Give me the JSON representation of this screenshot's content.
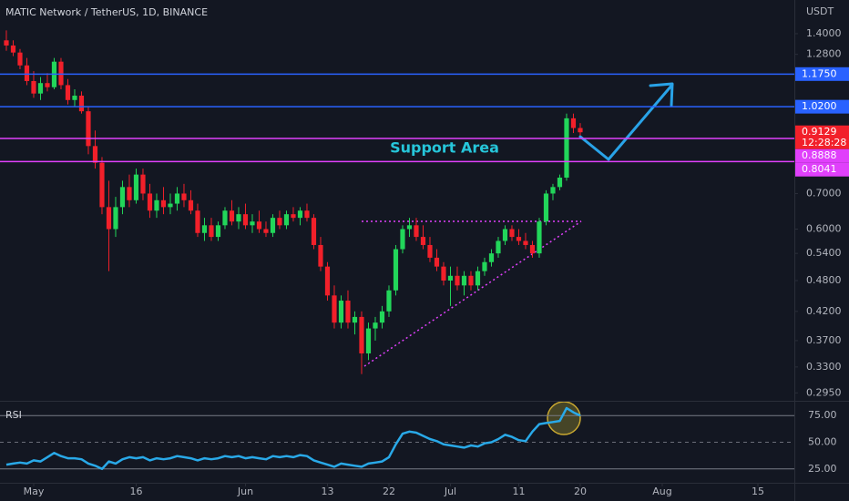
{
  "chart_data": [
    {
      "type": "candlestick",
      "title": "MATIC Network / TetherUS, 1D, BINANCE",
      "currency": "USDT",
      "log_scale": true,
      "up_color": "#22d65a",
      "down_color": "#f2202a",
      "x": [
        -4,
        -3,
        -2,
        -1,
        0,
        1,
        2,
        3,
        4,
        5,
        6,
        7,
        8,
        9,
        10,
        11,
        12,
        13,
        14,
        15,
        16,
        17,
        18,
        19,
        20,
        21,
        22,
        23,
        24,
        25,
        26,
        27,
        28,
        29,
        30,
        31,
        32,
        33,
        34,
        35,
        36,
        37,
        38,
        39,
        40,
        41,
        42,
        43,
        44,
        45,
        46,
        47,
        48,
        49,
        50,
        51,
        52,
        53,
        54,
        55,
        56,
        57,
        58,
        59,
        60,
        61,
        62,
        63,
        64,
        65,
        66,
        67,
        68,
        69,
        70,
        71,
        72,
        73,
        74,
        75,
        76,
        77,
        78,
        79,
        80
      ],
      "open": [
        1.36,
        1.33,
        1.29,
        1.22,
        1.14,
        1.08,
        1.13,
        1.11,
        1.24,
        1.12,
        1.05,
        1.07,
        1.0,
        0.86,
        0.8,
        0.66,
        0.6,
        0.66,
        0.72,
        0.68,
        0.76,
        0.7,
        0.65,
        0.68,
        0.66,
        0.67,
        0.7,
        0.68,
        0.65,
        0.59,
        0.61,
        0.58,
        0.61,
        0.65,
        0.62,
        0.64,
        0.61,
        0.62,
        0.6,
        0.59,
        0.63,
        0.61,
        0.64,
        0.63,
        0.65,
        0.63,
        0.56,
        0.51,
        0.45,
        0.4,
        0.44,
        0.4,
        0.41,
        0.35,
        0.39,
        0.4,
        0.42,
        0.46,
        0.55,
        0.6,
        0.61,
        0.58,
        0.56,
        0.53,
        0.51,
        0.48,
        0.49,
        0.47,
        0.49,
        0.47,
        0.5,
        0.52,
        0.54,
        0.57,
        0.6,
        0.58,
        0.57,
        0.56,
        0.54,
        0.62,
        0.7,
        0.72,
        0.75,
        0.97,
        0.93
      ],
      "high": [
        1.42,
        1.36,
        1.31,
        1.26,
        1.19,
        1.16,
        1.18,
        1.26,
        1.26,
        1.15,
        1.1,
        1.09,
        1.02,
        0.92,
        0.82,
        0.74,
        0.69,
        0.74,
        0.76,
        0.78,
        0.78,
        0.73,
        0.7,
        0.72,
        0.7,
        0.72,
        0.73,
        0.71,
        0.67,
        0.63,
        0.63,
        0.62,
        0.66,
        0.68,
        0.66,
        0.67,
        0.64,
        0.65,
        0.62,
        0.64,
        0.65,
        0.65,
        0.66,
        0.66,
        0.67,
        0.64,
        0.58,
        0.52,
        0.47,
        0.45,
        0.46,
        0.42,
        0.42,
        0.4,
        0.41,
        0.43,
        0.47,
        0.56,
        0.61,
        0.63,
        0.63,
        0.61,
        0.58,
        0.55,
        0.52,
        0.51,
        0.51,
        0.5,
        0.5,
        0.51,
        0.53,
        0.55,
        0.58,
        0.61,
        0.61,
        0.6,
        0.59,
        0.57,
        0.63,
        0.71,
        0.73,
        0.76,
        0.99,
        0.99,
        0.95
      ],
      "low": [
        1.3,
        1.27,
        1.2,
        1.12,
        1.06,
        1.05,
        1.09,
        1.1,
        1.1,
        1.03,
        1.02,
        0.99,
        0.83,
        0.78,
        0.64,
        0.5,
        0.58,
        0.64,
        0.66,
        0.67,
        0.68,
        0.63,
        0.63,
        0.64,
        0.64,
        0.65,
        0.66,
        0.64,
        0.58,
        0.57,
        0.57,
        0.57,
        0.6,
        0.61,
        0.6,
        0.6,
        0.59,
        0.59,
        0.58,
        0.58,
        0.6,
        0.6,
        0.62,
        0.61,
        0.62,
        0.55,
        0.5,
        0.44,
        0.39,
        0.39,
        0.39,
        0.38,
        0.32,
        0.34,
        0.37,
        0.39,
        0.41,
        0.45,
        0.54,
        0.58,
        0.57,
        0.55,
        0.52,
        0.5,
        0.47,
        0.43,
        0.46,
        0.45,
        0.46,
        0.46,
        0.49,
        0.51,
        0.53,
        0.56,
        0.57,
        0.56,
        0.55,
        0.53,
        0.53,
        0.61,
        0.68,
        0.71,
        0.74,
        0.91,
        0.9
      ],
      "close": [
        1.33,
        1.29,
        1.22,
        1.14,
        1.08,
        1.13,
        1.11,
        1.24,
        1.12,
        1.05,
        1.07,
        1.0,
        0.86,
        0.8,
        0.66,
        0.6,
        0.66,
        0.72,
        0.68,
        0.76,
        0.7,
        0.65,
        0.68,
        0.66,
        0.67,
        0.7,
        0.68,
        0.65,
        0.59,
        0.61,
        0.58,
        0.61,
        0.65,
        0.62,
        0.64,
        0.61,
        0.62,
        0.6,
        0.59,
        0.63,
        0.61,
        0.64,
        0.63,
        0.65,
        0.63,
        0.56,
        0.51,
        0.45,
        0.4,
        0.44,
        0.4,
        0.41,
        0.35,
        0.39,
        0.4,
        0.42,
        0.46,
        0.55,
        0.6,
        0.61,
        0.58,
        0.56,
        0.53,
        0.51,
        0.48,
        0.49,
        0.47,
        0.49,
        0.47,
        0.5,
        0.52,
        0.54,
        0.57,
        0.6,
        0.58,
        0.57,
        0.56,
        0.54,
        0.62,
        0.7,
        0.72,
        0.75,
        0.97,
        0.93,
        0.9129
      ],
      "countdown": "12:28:28",
      "last_price_color": "#f2202a",
      "ylim": [
        0.285,
        1.62
      ],
      "yticks": [
        {
          "value": 1.4,
          "label": "1.4000"
        },
        {
          "value": 1.28,
          "label": "1.2800"
        },
        {
          "value": 0.7,
          "label": "0.7000"
        },
        {
          "value": 0.6,
          "label": "0.6000"
        },
        {
          "value": 0.54,
          "label": "0.5400"
        },
        {
          "value": 0.48,
          "label": "0.4800"
        },
        {
          "value": 0.42,
          "label": "0.4200"
        },
        {
          "value": 0.37,
          "label": "0.3700"
        },
        {
          "value": 0.33,
          "label": "0.3300"
        },
        {
          "value": 0.295,
          "label": "0.2950"
        }
      ],
      "xlim": [
        -4.93,
        111.07
      ],
      "levels": [
        {
          "value": {
            "value": 1.175,
            "label": "1.1750"
          },
          "color": "#2962ff"
        },
        {
          "value": {
            "value": 1.02,
            "label": "1.0200"
          },
          "color": "#2962ff"
        },
        {
          "value": 0.8888,
          "color": "#e040fb"
        },
        {
          "value": 0.8041,
          "color": "#e040fb"
        }
      ],
      "annotation": "Support Area"
    },
    {
      "type": "line",
      "name": "RSI",
      "color": "#29a9e8",
      "x": [
        -4,
        -3,
        -2,
        -1,
        0,
        1,
        2,
        3,
        4,
        5,
        6,
        7,
        8,
        9,
        10,
        11,
        12,
        13,
        14,
        15,
        16,
        17,
        18,
        19,
        20,
        21,
        22,
        23,
        24,
        25,
        26,
        27,
        28,
        29,
        30,
        31,
        32,
        33,
        34,
        35,
        36,
        37,
        38,
        39,
        40,
        41,
        42,
        43,
        44,
        45,
        46,
        47,
        48,
        49,
        50,
        51,
        52,
        53,
        54,
        55,
        56,
        57,
        58,
        59,
        60,
        61,
        62,
        63,
        64,
        65,
        66,
        67,
        68,
        69,
        70,
        71,
        72,
        73,
        74,
        75,
        76,
        77,
        78,
        79,
        80
      ],
      "values": [
        29,
        30,
        31,
        30,
        33,
        32,
        36,
        40,
        37,
        35,
        35,
        34,
        30,
        28,
        25,
        32,
        30,
        34,
        36,
        35,
        36,
        33,
        35,
        34,
        35,
        37,
        36,
        35,
        33,
        35,
        34,
        35,
        37,
        36,
        37,
        35,
        36,
        35,
        34,
        37,
        36,
        37,
        36,
        38,
        37,
        33,
        31,
        29,
        27,
        30,
        29,
        28,
        27,
        30,
        31,
        32,
        36,
        48,
        58,
        60,
        59,
        56,
        53,
        51,
        48,
        47,
        46,
        45,
        47,
        46,
        49,
        50,
        53,
        57,
        55,
        52,
        51,
        60,
        67,
        68,
        69,
        70,
        82,
        78,
        75
      ],
      "ylim": [
        12,
        88
      ],
      "yticks": [
        {
          "value": 75,
          "label": "75.00"
        },
        {
          "value": 50,
          "label": "50.00"
        },
        {
          "value": 25,
          "label": "25.00"
        }
      ],
      "xlim": [
        -4.93,
        111.07
      ],
      "xticks": [
        {
          "value": 0,
          "label": "May"
        },
        {
          "value": 15,
          "label": "16"
        },
        {
          "value": 31,
          "label": "Jun"
        },
        {
          "value": 43,
          "label": "13"
        },
        {
          "value": 52,
          "label": "22"
        },
        {
          "value": 61,
          "label": "Jul"
        },
        {
          "value": 71,
          "label": "11"
        },
        {
          "value": 80,
          "label": "20"
        },
        {
          "value": 92,
          "label": "Aug"
        },
        {
          "value": 106,
          "label": "15"
        }
      ]
    }
  ]
}
